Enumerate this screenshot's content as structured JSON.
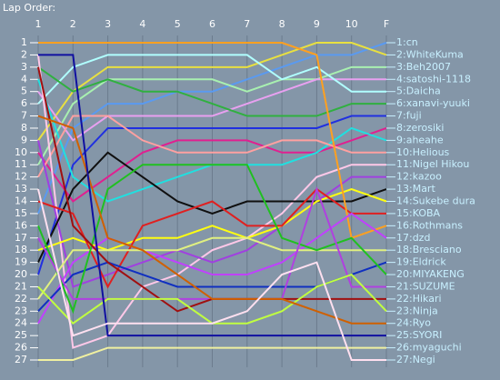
{
  "chart_data": {
    "type": "line",
    "title": "Lap Order:",
    "categories": [
      "1",
      "2",
      "3",
      "4",
      "5",
      "6",
      "7",
      "8",
      "9",
      "10",
      "F"
    ],
    "ylim": [
      1,
      27
    ],
    "yreverse": true,
    "yticks": [
      1,
      2,
      3,
      4,
      5,
      6,
      7,
      8,
      9,
      10,
      11,
      12,
      13,
      14,
      15,
      16,
      17,
      18,
      19,
      20,
      21,
      22,
      23,
      24,
      25,
      26,
      27
    ],
    "grid": true,
    "series": [
      {
        "name": "1:cn",
        "color": "#5a9af0",
        "values": [
          15,
          8,
          6,
          6,
          5,
          5,
          4,
          3,
          2,
          2,
          1
        ]
      },
      {
        "name": "2:WhiteKuma",
        "color": "#e8e040",
        "values": [
          9,
          5,
          3,
          3,
          3,
          3,
          3,
          2,
          1,
          1,
          2
        ]
      },
      {
        "name": "3:Beh2007",
        "color": "#a8f0b0",
        "values": [
          11,
          6,
          4,
          4,
          4,
          4,
          5,
          4,
          4,
          3,
          3
        ]
      },
      {
        "name": "4:satoshi-1118",
        "color": "#e8a0f0",
        "values": [
          5,
          9,
          7,
          7,
          7,
          7,
          6,
          5,
          4,
          4,
          4
        ]
      },
      {
        "name": "5:Daicha",
        "color": "#b0ffff",
        "values": [
          6,
          3,
          2,
          2,
          2,
          2,
          2,
          4,
          3,
          5,
          5
        ]
      },
      {
        "name": "6:xanavi-yuuki",
        "color": "#30b040",
        "values": [
          3,
          5,
          4,
          5,
          5,
          6,
          7,
          7,
          7,
          6,
          6
        ]
      },
      {
        "name": "7:fuji",
        "color": "#2030e0",
        "values": [
          20,
          11,
          8,
          8,
          8,
          8,
          8,
          8,
          8,
          7,
          7
        ]
      },
      {
        "name": "8:zerosiki",
        "color": "#e02090",
        "values": [
          10,
          14,
          12,
          10,
          9,
          9,
          9,
          10,
          10,
          9,
          8
        ]
      },
      {
        "name": "9:aheahe",
        "color": "#20e0e0",
        "values": [
          4,
          12,
          14,
          13,
          12,
          11,
          11,
          11,
          10,
          8,
          9
        ]
      },
      {
        "name": "10:Helious",
        "color": "#ffa0a0",
        "values": [
          12,
          7,
          7,
          9,
          10,
          10,
          10,
          9,
          9,
          10,
          10
        ]
      },
      {
        "name": "11:Nigel Hikou",
        "color": "#ffc8e8",
        "values": [
          2,
          26,
          25,
          21,
          20,
          18,
          17,
          15,
          12,
          11,
          11
        ]
      },
      {
        "name": "12:kazoo",
        "color": "#a040e0",
        "values": [
          9,
          21,
          20,
          19,
          18,
          19,
          18,
          16,
          14,
          12,
          12
        ]
      },
      {
        "name": "13:Mart",
        "color": "#101010",
        "values": [
          19,
          13,
          10,
          12,
          14,
          15,
          14,
          14,
          14,
          14,
          13
        ]
      },
      {
        "name": "14:Sukebe dura",
        "color": "#ffff10",
        "values": [
          18,
          17,
          18,
          17,
          17,
          16,
          17,
          16,
          14,
          13,
          14
        ]
      },
      {
        "name": "15:KOBA",
        "color": "#e02020",
        "values": [
          14,
          15,
          21,
          16,
          15,
          14,
          16,
          16,
          13,
          15,
          15
        ]
      },
      {
        "name": "16:Rothmans",
        "color": "#ffa020",
        "values": [
          1,
          1,
          1,
          1,
          1,
          1,
          1,
          1,
          2,
          17,
          16
        ]
      },
      {
        "name": "17:dzd",
        "color": "#c040ff",
        "values": [
          24,
          19,
          17,
          18,
          19,
          20,
          20,
          19,
          17,
          15,
          17
        ]
      },
      {
        "name": "18:Bresciano",
        "color": "#e0f080",
        "values": [
          22,
          18,
          18,
          18,
          18,
          17,
          17,
          18,
          18,
          18,
          18
        ]
      },
      {
        "name": "19:Eldrick",
        "color": "#1030c0",
        "values": [
          23,
          20,
          19,
          20,
          21,
          21,
          21,
          21,
          21,
          20,
          19
        ]
      },
      {
        "name": "20:MIYAKENG",
        "color": "#20c020",
        "values": [
          16,
          23,
          13,
          11,
          11,
          11,
          11,
          17,
          18,
          17,
          20
        ]
      },
      {
        "name": "21:SUZUME",
        "color": "#b040e0",
        "values": [
          17,
          22,
          22,
          22,
          22,
          22,
          22,
          22,
          13,
          21,
          21
        ]
      },
      {
        "name": "22:Hikari",
        "color": "#a01010",
        "values": [
          3,
          16,
          19,
          21,
          23,
          22,
          22,
          22,
          22,
          22,
          22
        ]
      },
      {
        "name": "23:Ninja",
        "color": "#c0ff40",
        "values": [
          21,
          24,
          22,
          22,
          22,
          24,
          24,
          23,
          21,
          20,
          23
        ]
      },
      {
        "name": "24:Ryo",
        "color": "#d06000",
        "values": [
          7,
          8,
          17,
          18,
          20,
          22,
          22,
          22,
          23,
          24,
          24
        ]
      },
      {
        "name": "25:SYORI",
        "color": "#1010a0",
        "values": [
          2,
          2,
          25,
          25,
          25,
          25,
          25,
          25,
          25,
          25,
          25
        ]
      },
      {
        "name": "26:myaguchi",
        "color": "#f0f0a0",
        "values": [
          27,
          27,
          26,
          26,
          26,
          26,
          26,
          26,
          26,
          26,
          26
        ]
      },
      {
        "name": "27:Negi",
        "color": "#ffe0f0",
        "values": [
          13,
          25,
          24,
          24,
          24,
          24,
          23,
          20,
          19,
          27,
          27
        ]
      }
    ]
  }
}
